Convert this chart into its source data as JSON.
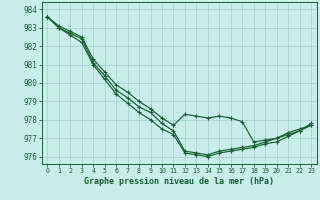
{
  "title": "Graphe pression niveau de la mer (hPa)",
  "bg_color": "#c8eee8",
  "grid_color": "#a0cfca",
  "line_color": "#1a5c35",
  "ylim": [
    975.6,
    984.4
  ],
  "xlim": [
    -0.5,
    23.5
  ],
  "yticks": [
    976,
    977,
    978,
    979,
    980,
    981,
    982,
    983,
    984
  ],
  "xticks": [
    0,
    1,
    2,
    3,
    4,
    5,
    6,
    7,
    8,
    9,
    10,
    11,
    12,
    13,
    14,
    15,
    16,
    17,
    18,
    19,
    20,
    21,
    22,
    23
  ],
  "series": [
    [
      983.6,
      983.0,
      982.7,
      982.4,
      981.1,
      980.4,
      979.6,
      979.2,
      978.7,
      978.4,
      977.8,
      977.4,
      976.3,
      976.2,
      976.1,
      976.3,
      976.4,
      976.5,
      976.6,
      976.8,
      977.0,
      977.3,
      977.5,
      977.7
    ],
    [
      983.6,
      983.0,
      982.6,
      982.2,
      981.0,
      980.2,
      979.4,
      978.9,
      978.4,
      978.0,
      977.5,
      977.2,
      976.2,
      976.1,
      976.0,
      976.2,
      976.3,
      976.4,
      976.5,
      976.7,
      976.8,
      977.1,
      977.4,
      977.8
    ],
    [
      983.6,
      983.1,
      982.8,
      982.5,
      981.3,
      980.6,
      979.9,
      979.5,
      979.0,
      978.6,
      978.1,
      977.7,
      978.3,
      978.2,
      978.1,
      978.2,
      978.1,
      977.9,
      976.8,
      976.9,
      977.0,
      977.2,
      977.4,
      977.7
    ]
  ]
}
